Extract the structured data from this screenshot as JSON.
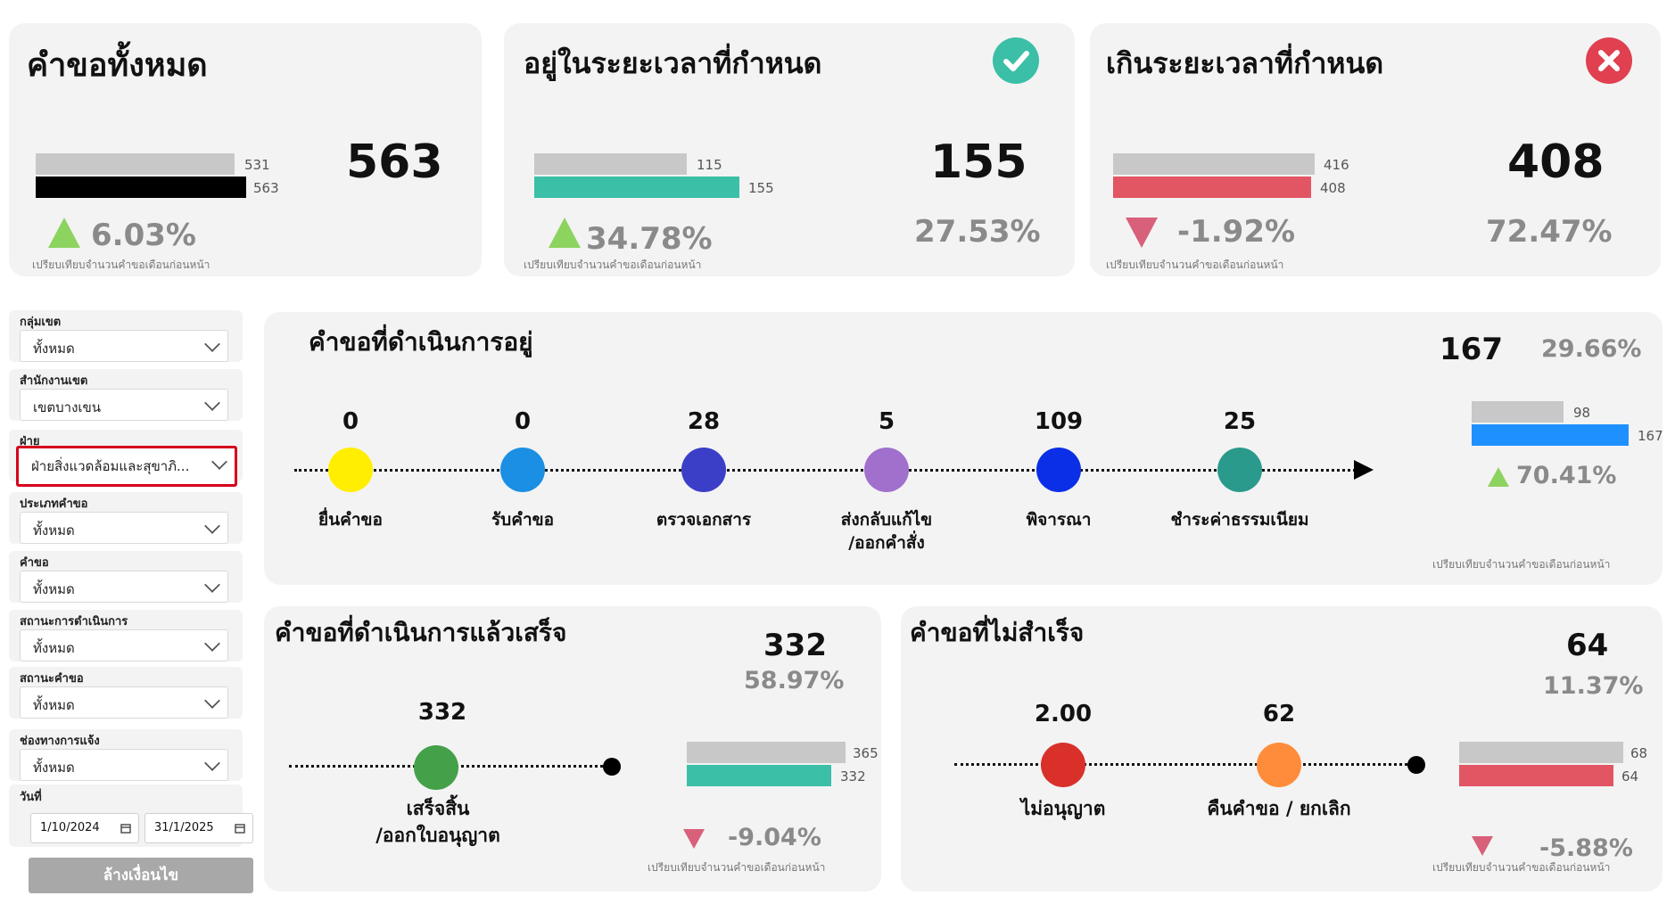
{
  "colors": {
    "gray_bar": "#c8c8c8",
    "black_bar": "#000000",
    "teal": "#3bbfa7",
    "red_bar": "#e25563",
    "blue_bar": "#1e90ff",
    "up_green": "#8dd35f",
    "down_pink": "#d8607a"
  },
  "kpi_total": {
    "title": "คำขอทั้งหมด",
    "value": "563",
    "prev_label": "531",
    "curr_label": "563",
    "prev_fraction": 0.943,
    "curr_fraction": 1.0,
    "change": "6.03%",
    "trend": "up",
    "note": "เปรียบเทียบจำนวนคำขอเดือนก่อนหน้า"
  },
  "kpi_ontime": {
    "title": "อยู่ในระยะเวลาที่กำหนด",
    "icon": "check-circle-icon",
    "value": "155",
    "percent": "27.53%",
    "prev_label": "115",
    "curr_label": "155",
    "prev_fraction": 0.742,
    "curr_fraction": 1.0,
    "change": "34.78%",
    "trend": "up",
    "note": "เปรียบเทียบจำนวนคำขอเดือนก่อนหน้า"
  },
  "kpi_overdue": {
    "title": "เกินระยะเวลาที่กำหนด",
    "icon": "x-circle-icon",
    "value": "408",
    "percent": "72.47%",
    "prev_label": "416",
    "curr_label": "408",
    "prev_fraction": 1.0,
    "curr_fraction": 0.981,
    "change": "-1.92%",
    "trend": "down",
    "note": "เปรียบเทียบจำนวนคำขอเดือนก่อนหน้า"
  },
  "filters": [
    {
      "label": "กลุ่มเขต",
      "value": "ทั้งหมด"
    },
    {
      "label": "สำนักงานเขต",
      "value": "เขตบางเขน"
    },
    {
      "label": "ฝ่าย",
      "value": "ฝ่ายสิ่งแวดล้อมและสุขาภิ..."
    },
    {
      "label": "ประเภทคำขอ",
      "value": "ทั้งหมด"
    },
    {
      "label": "คำขอ",
      "value": "ทั้งหมด"
    },
    {
      "label": "สถานะการดำเนินการ",
      "value": "ทั้งหมด"
    },
    {
      "label": "สถานะคำขอ",
      "value": "ทั้งหมด"
    },
    {
      "label": "ช่องทางการแจ้ง",
      "value": "ทั้งหมด"
    }
  ],
  "date_filter": {
    "label": "วันที่",
    "start": "1/10/2024",
    "end": "31/1/2025",
    "calendar_icon": "calendar-icon"
  },
  "clear_button": "ล้างเงื่อนไข",
  "in_progress": {
    "title": "คำขอที่ดำเนินการอยู่",
    "value": "167",
    "percent": "29.66%",
    "prev_label": "98",
    "curr_label": "167",
    "prev_fraction": 0.587,
    "curr_fraction": 1.0,
    "change": "70.41%",
    "trend": "up",
    "note": "เปรียบเทียบจำนวนคำขอเดือนก่อนหน้า",
    "stages": [
      {
        "value": "0",
        "label": "ยื่นคำขอ",
        "color": "#ffee00"
      },
      {
        "value": "0",
        "label": "รับคำขอ",
        "color": "#1a8fe3"
      },
      {
        "value": "28",
        "label": "ตรวจเอกสาร",
        "color": "#3b3fc8"
      },
      {
        "value": "5",
        "label": "ส่งกลับแก้ไข\n/ออกคำสั่ง",
        "color": "#a070cc"
      },
      {
        "value": "109",
        "label": "พิจารณา",
        "color": "#0a2fe6"
      },
      {
        "value": "25",
        "label": "ชำระค่าธรรมเนียม",
        "color": "#2a9a8c"
      }
    ]
  },
  "completed": {
    "title": "คำขอที่ดำเนินการแล้วเสร็จ",
    "value": "332",
    "percent": "58.97%",
    "stage_value": "332",
    "stage_label": "เสร็จสิ้น\n/ออกใบอนุญาต",
    "stage_color": "#45a04a",
    "prev_label": "365",
    "curr_label": "332",
    "prev_fraction": 1.0,
    "curr_fraction": 0.91,
    "change": "-9.04%",
    "trend": "down",
    "note": "เปรียบเทียบจำนวนคำขอเดือนก่อนหน้า"
  },
  "failed": {
    "title": "คำขอที่ไม่สำเร็จ",
    "value": "64",
    "percent": "11.37%",
    "stages": [
      {
        "value": "2.00",
        "label": "ไม่อนุญาต",
        "color": "#d9302a"
      },
      {
        "value": "62",
        "label": "คืนคำขอ / ยกเลิก",
        "color": "#ff8c3a"
      }
    ],
    "prev_label": "68",
    "curr_label": "64",
    "prev_fraction": 1.0,
    "curr_fraction": 0.94,
    "change": "-5.88%",
    "trend": "down",
    "note": "เปรียบเทียบจำนวนคำขอเดือนก่อนหน้า"
  }
}
